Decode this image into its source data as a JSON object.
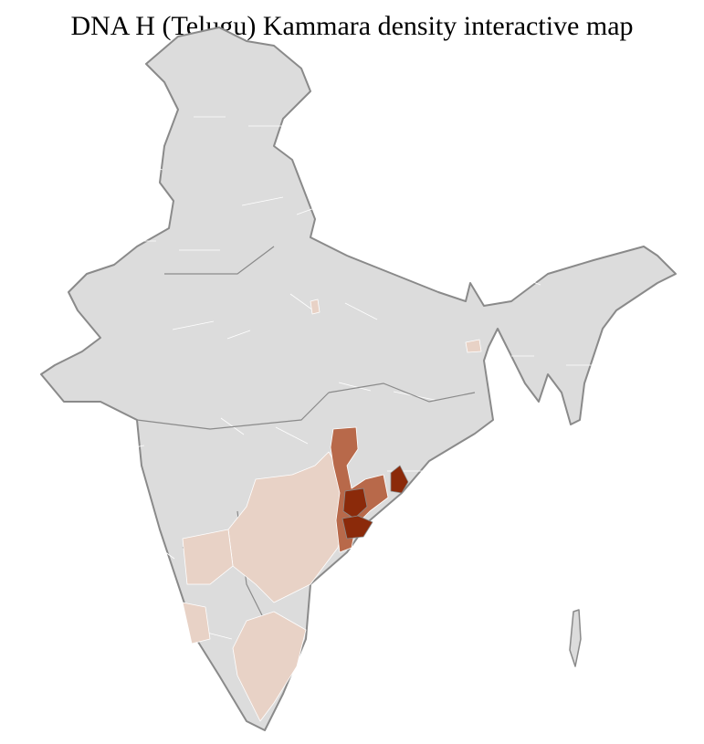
{
  "title": "DNA H (Telugu) Kammara density interactive map",
  "colors": {
    "base": "#dcdcdc",
    "border": "#8a8a8a",
    "district_border": "#ffffff",
    "low": "#e8d2c6",
    "medium": "#b8694a",
    "high": "#8b2a0a"
  }
}
